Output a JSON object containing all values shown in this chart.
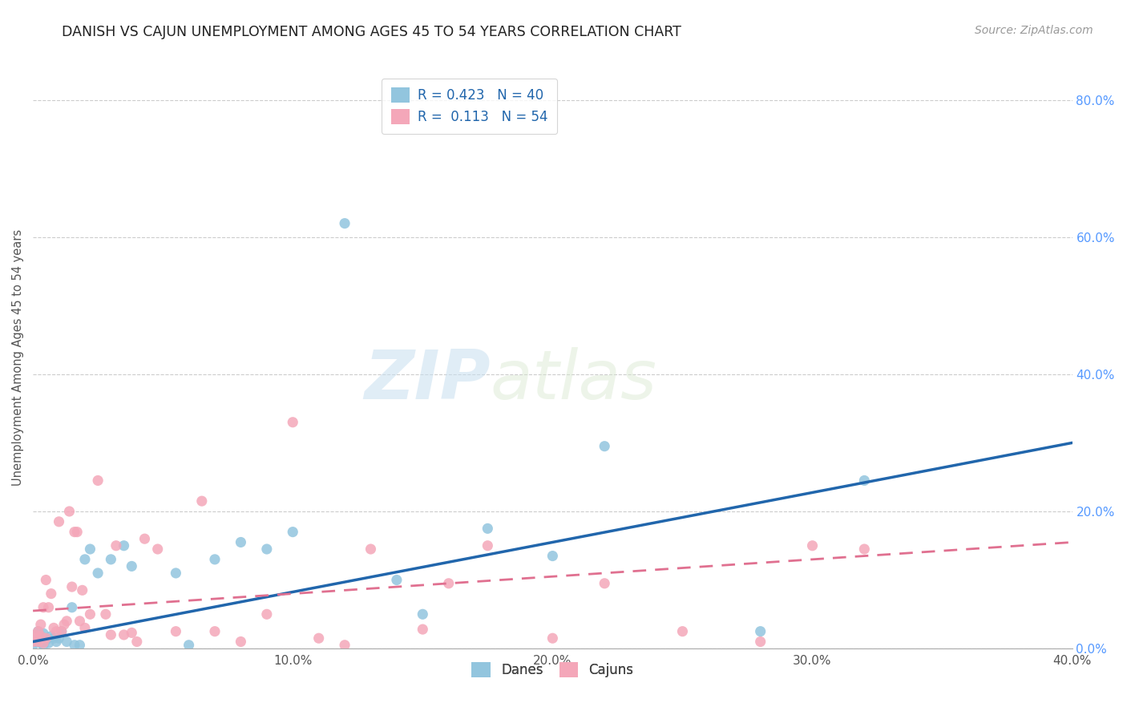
{
  "title": "DANISH VS CAJUN UNEMPLOYMENT AMONG AGES 45 TO 54 YEARS CORRELATION CHART",
  "source": "Source: ZipAtlas.com",
  "ylabel": "Unemployment Among Ages 45 to 54 years",
  "xlabel": "",
  "xlim": [
    0.0,
    0.4
  ],
  "ylim": [
    0.0,
    0.85
  ],
  "xticks": [
    0.0,
    0.1,
    0.2,
    0.3,
    0.4
  ],
  "xtick_labels": [
    "0.0%",
    "10.0%",
    "20.0%",
    "30.0%",
    "40.0%"
  ],
  "yticks_right": [
    0.0,
    0.2,
    0.4,
    0.6,
    0.8
  ],
  "ytick_labels_right": [
    "0.0%",
    "20.0%",
    "40.0%",
    "60.0%",
    "80.0%"
  ],
  "danes_color": "#92c5de",
  "cajuns_color": "#f4a7b9",
  "danes_line_color": "#2166ac",
  "cajuns_line_color": "#e07090",
  "danes_R": 0.423,
  "danes_N": 40,
  "cajuns_R": 0.113,
  "cajuns_N": 54,
  "watermark_zip": "ZIP",
  "watermark_atlas": "atlas",
  "background_color": "#ffffff",
  "danes_x": [
    0.0,
    0.001,
    0.001,
    0.002,
    0.002,
    0.003,
    0.003,
    0.004,
    0.004,
    0.005,
    0.006,
    0.007,
    0.008,
    0.009,
    0.01,
    0.011,
    0.013,
    0.015,
    0.016,
    0.018,
    0.02,
    0.022,
    0.025,
    0.03,
    0.035,
    0.038,
    0.055,
    0.06,
    0.07,
    0.08,
    0.09,
    0.1,
    0.12,
    0.14,
    0.15,
    0.175,
    0.2,
    0.22,
    0.28,
    0.32
  ],
  "danes_y": [
    0.005,
    0.01,
    0.02,
    0.015,
    0.025,
    0.008,
    0.018,
    0.005,
    0.022,
    0.012,
    0.008,
    0.018,
    0.015,
    0.01,
    0.015,
    0.025,
    0.01,
    0.06,
    0.005,
    0.005,
    0.13,
    0.145,
    0.11,
    0.13,
    0.15,
    0.12,
    0.11,
    0.005,
    0.13,
    0.155,
    0.145,
    0.17,
    0.62,
    0.1,
    0.05,
    0.175,
    0.135,
    0.295,
    0.025,
    0.245
  ],
  "cajuns_x": [
    0.0,
    0.001,
    0.001,
    0.002,
    0.002,
    0.003,
    0.003,
    0.004,
    0.004,
    0.005,
    0.005,
    0.006,
    0.007,
    0.008,
    0.009,
    0.01,
    0.011,
    0.012,
    0.013,
    0.014,
    0.015,
    0.016,
    0.017,
    0.018,
    0.019,
    0.02,
    0.022,
    0.025,
    0.028,
    0.03,
    0.032,
    0.035,
    0.038,
    0.04,
    0.043,
    0.048,
    0.055,
    0.065,
    0.07,
    0.08,
    0.09,
    0.1,
    0.11,
    0.12,
    0.13,
    0.15,
    0.16,
    0.175,
    0.2,
    0.22,
    0.25,
    0.28,
    0.3,
    0.32
  ],
  "cajuns_y": [
    0.01,
    0.015,
    0.02,
    0.01,
    0.025,
    0.018,
    0.035,
    0.008,
    0.06,
    0.015,
    0.1,
    0.06,
    0.08,
    0.03,
    0.025,
    0.185,
    0.025,
    0.035,
    0.04,
    0.2,
    0.09,
    0.17,
    0.17,
    0.04,
    0.085,
    0.03,
    0.05,
    0.245,
    0.05,
    0.02,
    0.15,
    0.02,
    0.023,
    0.01,
    0.16,
    0.145,
    0.025,
    0.215,
    0.025,
    0.01,
    0.05,
    0.33,
    0.015,
    0.005,
    0.145,
    0.028,
    0.095,
    0.15,
    0.015,
    0.095,
    0.025,
    0.01,
    0.15,
    0.145
  ],
  "danes_line_x0": 0.0,
  "danes_line_y0": 0.01,
  "danes_line_x1": 0.4,
  "danes_line_y1": 0.3,
  "cajuns_line_x0": 0.0,
  "cajuns_line_y0": 0.055,
  "cajuns_line_x1": 0.4,
  "cajuns_line_y1": 0.155
}
